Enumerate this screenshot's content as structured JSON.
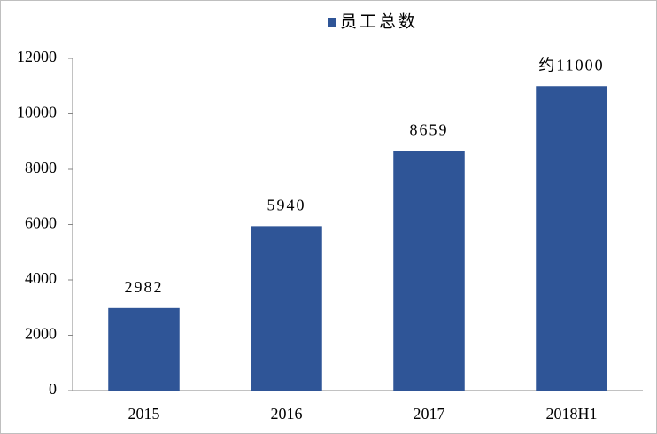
{
  "chart_data": {
    "type": "bar",
    "categories": [
      "2015",
      "2016",
      "2017",
      "2018H1"
    ],
    "series": [
      {
        "name": "员工总数",
        "color": "#2f5597",
        "values": [
          2982,
          5940,
          8659,
          11000
        ],
        "value_labels": [
          "2982",
          "5940",
          "8659",
          "约11000"
        ]
      }
    ],
    "ylim": [
      0,
      12000
    ],
    "yticks": [
      0,
      2000,
      4000,
      6000,
      8000,
      10000,
      12000
    ],
    "legend": "top",
    "grid": false
  }
}
